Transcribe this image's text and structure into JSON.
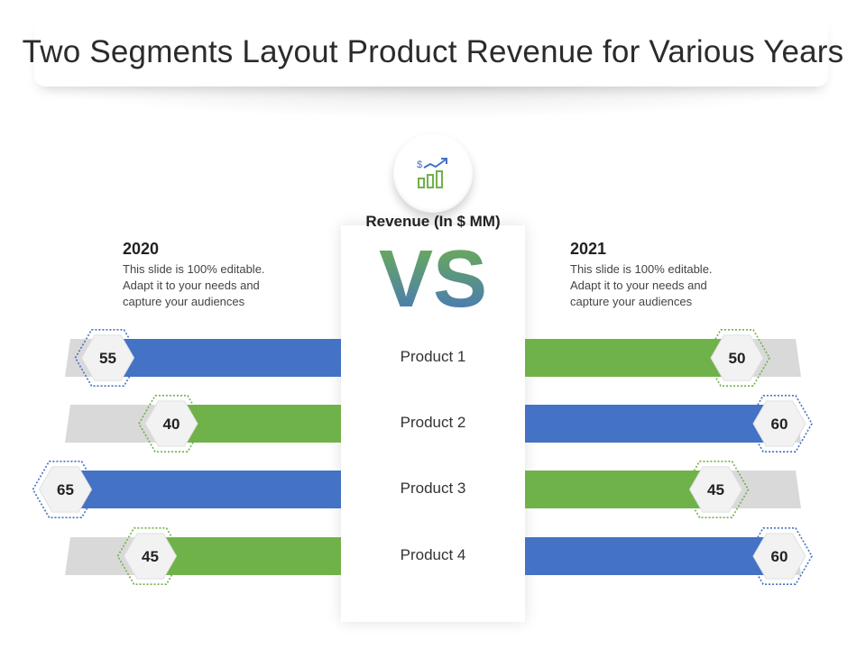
{
  "title": "Two Segments Layout Product Revenue for Various Years",
  "icon": "revenue-growth-icon",
  "center_heading": "Revenue (In $ MM)",
  "vs_text": "VS",
  "left_panel": {
    "year": "2020",
    "desc": [
      "This slide is 100% editable.",
      "Adapt it to your needs and",
      "capture your audiences"
    ]
  },
  "right_panel": {
    "year": "2021",
    "desc": [
      "This slide is 100% editable.",
      "Adapt it to your needs and",
      "capture your audiences"
    ]
  },
  "colors": {
    "blue": "#4472c4",
    "green": "#6fb24a",
    "track": "#d9d9d9",
    "vs_top": "#6fb24a",
    "vs_bottom": "#4472c4"
  },
  "chart_data": {
    "type": "bar",
    "title": "Revenue (In $ MM)",
    "categories": [
      "Product 1",
      "Product 2",
      "Product 3",
      "Product 4"
    ],
    "series": [
      {
        "name": "2020",
        "values": [
          55,
          40,
          65,
          45
        ],
        "bar_colors": [
          "blue",
          "green",
          "blue",
          "green"
        ]
      },
      {
        "name": "2021",
        "values": [
          50,
          60,
          45,
          60
        ],
        "bar_colors": [
          "green",
          "blue",
          "green",
          "blue"
        ]
      }
    ],
    "ylim": [
      0,
      100
    ]
  }
}
